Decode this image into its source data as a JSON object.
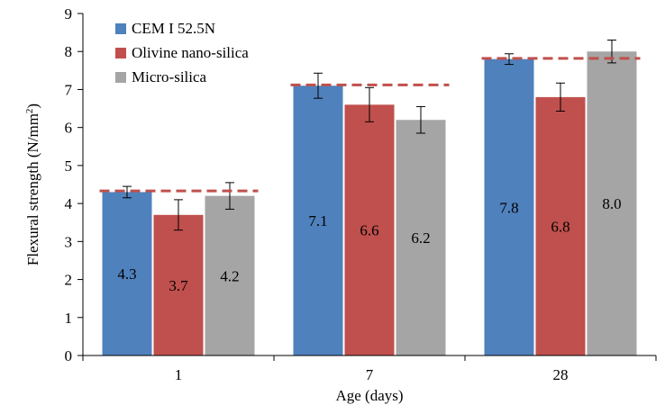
{
  "chart_data": {
    "type": "bar",
    "categories": [
      "1",
      "7",
      "28"
    ],
    "series": [
      {
        "name": "CEM I 52.5N",
        "color": "#4f81bd",
        "values": [
          4.3,
          7.1,
          7.8
        ],
        "value_labels": [
          "4.3",
          "7.1",
          "7.8"
        ],
        "error": [
          0.15,
          0.33,
          0.14
        ]
      },
      {
        "name": "Olivine nano-silica",
        "color": "#c0504d",
        "values": [
          3.7,
          6.6,
          6.8
        ],
        "value_labels": [
          "3.7",
          "6.6",
          "6.8"
        ],
        "error": [
          0.4,
          0.45,
          0.37
        ]
      },
      {
        "name": "Micro-silica",
        "color": "#a5a5a5",
        "values": [
          4.2,
          6.2,
          8.0
        ],
        "value_labels": [
          "4.2",
          "6.2",
          "8.0"
        ],
        "error": [
          0.35,
          0.35,
          0.3
        ]
      }
    ],
    "reference_lines": [
      {
        "category": "1",
        "value": 4.33,
        "color": "#c0504d"
      },
      {
        "category": "7",
        "value": 7.12,
        "color": "#c0504d"
      },
      {
        "category": "28",
        "value": 7.82,
        "color": "#c0504d"
      }
    ],
    "xlabel": "Age (days)",
    "ylabel_main": "Flexural strength (N/mm",
    "ylabel_sup": "2",
    "ylabel_end": ")",
    "ylim": [
      0,
      9
    ],
    "yticks": [
      "0",
      "1",
      "2",
      "3",
      "4",
      "5",
      "6",
      "7",
      "8",
      "9"
    ],
    "grid": false,
    "legend_position": "top-left"
  }
}
